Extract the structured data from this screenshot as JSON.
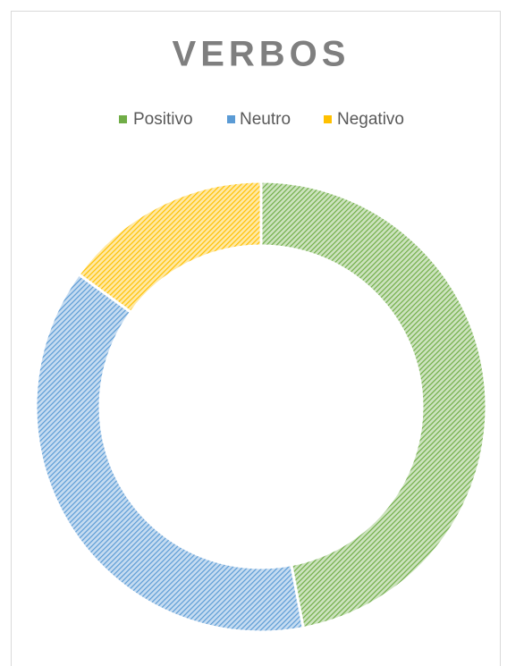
{
  "chart_data": {
    "type": "donut",
    "title": "VERBOS",
    "categories": [
      "Positivo",
      "Neutro",
      "Negativo"
    ],
    "values": [
      47,
      38,
      15
    ],
    "colors": [
      "#70ad47",
      "#5b9bd5",
      "#ffc000"
    ],
    "legend": "top"
  }
}
